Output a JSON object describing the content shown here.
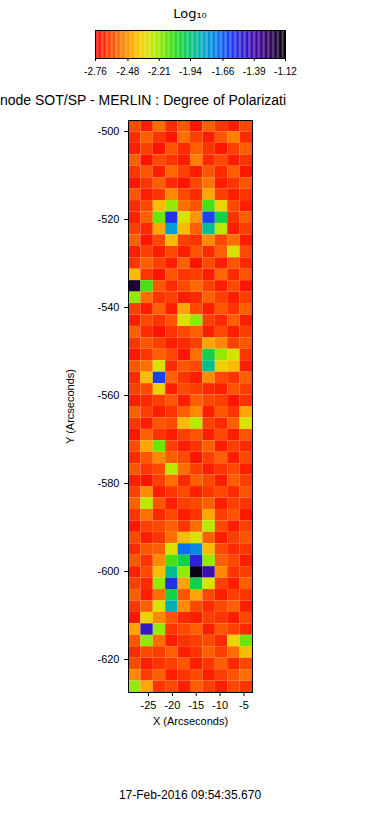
{
  "chart_data": {
    "type": "heatmap",
    "title": "node SOT/SP - MERLIN : Degree of Polarizati",
    "x_label": "X (Arcseconds)",
    "y_label": "Y (Arcseconds)",
    "caption": "17-Feb-2016 09:54:35.670",
    "xlim": [
      -29.2,
      -3.2
    ],
    "ylim": [
      -627.5,
      -497.5
    ],
    "xticks": [
      -25,
      -20,
      -15,
      -10,
      -5
    ],
    "yticks": [
      -620,
      -600,
      -580,
      -560,
      -540,
      -520,
      -500
    ],
    "colorbar": {
      "label": "Log₁₀",
      "range": [
        -2.76,
        -1.12
      ],
      "ticks": [
        -2.76,
        -2.48,
        -2.21,
        -1.94,
        -1.66,
        -1.39,
        -1.12
      ]
    },
    "x": [
      -27.9,
      -25.3,
      -22.7,
      -20.1,
      -17.5,
      -14.9,
      -12.3,
      -9.7,
      -7.1,
      -4.5
    ],
    "y": [
      -498.8,
      -501.4,
      -504.0,
      -506.6,
      -509.2,
      -511.8,
      -514.4,
      -517.0,
      -519.6,
      -522.2,
      -524.8,
      -527.4,
      -530.0,
      -532.6,
      -535.2,
      -537.8,
      -540.4,
      -543.0,
      -545.6,
      -548.2,
      -550.8,
      -553.4,
      -556.0,
      -558.6,
      -561.2,
      -563.8,
      -566.4,
      -569.0,
      -571.6,
      -574.2,
      -576.8,
      -579.4,
      -582.0,
      -584.6,
      -587.2,
      -589.8,
      -592.4,
      -595.0,
      -597.6,
      -600.2,
      -602.8,
      -605.4,
      -608.0,
      -610.6,
      -613.2,
      -615.8,
      -618.4,
      -621.0,
      -623.6,
      -626.2
    ],
    "z": [
      [
        -2.62,
        -2.7,
        -2.55,
        -2.68,
        -2.6,
        -2.72,
        -2.58,
        -2.66,
        -2.7,
        -2.62
      ],
      [
        -2.68,
        -2.58,
        -2.66,
        -2.72,
        -2.55,
        -2.64,
        -2.7,
        -2.6,
        -2.52,
        -2.68
      ],
      [
        -2.7,
        -2.64,
        -2.72,
        -2.6,
        -2.68,
        -2.58,
        -2.66,
        -2.72,
        -2.64,
        -2.58
      ],
      [
        -2.58,
        -2.72,
        -2.62,
        -2.66,
        -2.7,
        -2.52,
        -2.68,
        -2.62,
        -2.7,
        -2.66
      ],
      [
        -2.66,
        -2.6,
        -2.7,
        -2.56,
        -2.64,
        -2.7,
        -2.6,
        -2.68,
        -2.58,
        -2.72
      ],
      [
        -2.72,
        -2.66,
        -2.58,
        -2.68,
        -2.72,
        -2.62,
        -2.54,
        -2.7,
        -2.66,
        -2.6
      ],
      [
        -2.6,
        -2.7,
        -2.66,
        -2.5,
        -2.62,
        -2.68,
        -2.45,
        -2.64,
        -2.7,
        -2.66
      ],
      [
        -2.68,
        -2.62,
        -2.4,
        -2.2,
        -2.55,
        -2.6,
        -2.1,
        -2.35,
        -2.62,
        -2.7
      ],
      [
        -2.7,
        -2.58,
        -2.15,
        -1.55,
        -2.3,
        -2.48,
        -1.6,
        -2.0,
        -2.66,
        -2.58
      ],
      [
        -2.64,
        -2.68,
        -2.45,
        -1.8,
        -2.4,
        -2.58,
        -1.9,
        -2.25,
        -2.7,
        -2.64
      ],
      [
        -2.58,
        -2.72,
        -2.62,
        -2.4,
        -2.64,
        -2.66,
        -2.5,
        -2.62,
        -2.55,
        -2.7
      ],
      [
        -2.7,
        -2.64,
        -2.7,
        -2.62,
        -2.7,
        -2.6,
        -2.68,
        -2.58,
        -2.3,
        -2.62
      ],
      [
        -2.66,
        -2.58,
        -2.64,
        -2.7,
        -2.58,
        -2.72,
        -2.62,
        -2.7,
        -2.6,
        -2.68
      ],
      [
        -2.4,
        -2.66,
        -2.72,
        -2.6,
        -2.66,
        -2.64,
        -2.7,
        -2.56,
        -2.68,
        -2.6
      ],
      [
        -1.2,
        -2.1,
        -2.6,
        -2.68,
        -2.62,
        -2.56,
        -2.64,
        -2.7,
        -2.62,
        -2.72
      ],
      [
        -2.2,
        -2.55,
        -2.66,
        -2.64,
        -2.7,
        -2.68,
        -2.58,
        -2.64,
        -2.7,
        -2.64
      ],
      [
        -2.64,
        -2.7,
        -2.58,
        -2.7,
        -2.45,
        -2.62,
        -2.7,
        -2.6,
        -2.66,
        -2.58
      ],
      [
        -2.7,
        -2.62,
        -2.66,
        -2.6,
        -2.3,
        -2.2,
        -2.64,
        -2.68,
        -2.58,
        -2.7
      ],
      [
        -2.58,
        -2.68,
        -2.72,
        -2.66,
        -2.62,
        -2.58,
        -2.7,
        -2.62,
        -2.7,
        -2.64
      ],
      [
        -2.66,
        -2.6,
        -2.64,
        -2.7,
        -2.68,
        -2.64,
        -2.45,
        -2.5,
        -2.64,
        -2.6
      ],
      [
        -2.72,
        -2.66,
        -2.58,
        -2.62,
        -2.72,
        -2.55,
        -2.0,
        -2.2,
        -2.3,
        -2.66
      ],
      [
        -2.6,
        -2.55,
        -2.3,
        -2.68,
        -2.6,
        -2.62,
        -1.9,
        -2.35,
        -2.4,
        -2.7
      ],
      [
        -2.68,
        -2.4,
        -1.6,
        -2.58,
        -2.66,
        -2.7,
        -2.5,
        -2.62,
        -2.66,
        -2.58
      ],
      [
        -2.64,
        -2.62,
        -2.35,
        -2.7,
        -2.62,
        -2.64,
        -2.68,
        -2.7,
        -2.6,
        -2.64
      ],
      [
        -2.7,
        -2.68,
        -2.64,
        -2.6,
        -2.7,
        -2.58,
        -2.62,
        -2.64,
        -2.72,
        -2.66
      ],
      [
        -2.58,
        -2.64,
        -2.7,
        -2.66,
        -2.58,
        -2.5,
        -2.7,
        -2.6,
        -2.66,
        -2.45
      ],
      [
        -2.66,
        -2.7,
        -2.6,
        -2.62,
        -2.4,
        -2.25,
        -2.64,
        -2.68,
        -2.58,
        -2.3
      ],
      [
        -2.72,
        -2.58,
        -2.66,
        -2.7,
        -2.64,
        -2.6,
        -2.7,
        -2.62,
        -2.7,
        -2.6
      ],
      [
        -2.62,
        -2.45,
        -2.15,
        -2.64,
        -2.7,
        -2.66,
        -2.58,
        -2.7,
        -2.64,
        -2.68
      ],
      [
        -2.68,
        -2.6,
        -2.5,
        -2.58,
        -2.62,
        -2.72,
        -2.64,
        -2.58,
        -2.7,
        -2.62
      ],
      [
        -2.6,
        -2.66,
        -2.62,
        -2.25,
        -2.55,
        -2.64,
        -2.7,
        -2.66,
        -2.62,
        -2.7
      ],
      [
        -2.7,
        -2.72,
        -2.64,
        -2.55,
        -2.68,
        -2.58,
        -2.62,
        -2.7,
        -2.58,
        -2.64
      ],
      [
        -2.64,
        -2.5,
        -2.7,
        -2.66,
        -2.62,
        -2.7,
        -2.66,
        -2.62,
        -2.68,
        -2.6
      ],
      [
        -2.58,
        -2.25,
        -2.6,
        -2.7,
        -2.64,
        -2.62,
        -2.58,
        -2.7,
        -2.64,
        -2.66
      ],
      [
        -2.66,
        -2.55,
        -2.68,
        -2.62,
        -2.7,
        -2.66,
        -2.45,
        -2.64,
        -2.6,
        -2.72
      ],
      [
        -2.72,
        -2.64,
        -2.62,
        -2.58,
        -2.66,
        -2.55,
        -2.25,
        -2.62,
        -2.7,
        -2.64
      ],
      [
        -2.62,
        -2.7,
        -2.66,
        -2.55,
        -2.4,
        -2.3,
        -2.58,
        -2.7,
        -2.64,
        -2.6
      ],
      [
        -2.68,
        -2.6,
        -2.58,
        -2.3,
        -1.7,
        -1.75,
        -2.4,
        -2.62,
        -2.68,
        -2.66
      ],
      [
        -2.6,
        -2.66,
        -2.5,
        -2.1,
        -2.0,
        -1.5,
        -2.2,
        -2.58,
        -2.62,
        -2.7
      ],
      [
        -2.7,
        -2.62,
        -2.4,
        -1.9,
        -2.2,
        -1.15,
        -1.4,
        -2.5,
        -2.66,
        -2.64
      ],
      [
        -2.64,
        -2.68,
        -2.2,
        -1.55,
        -2.45,
        -2.0,
        -2.3,
        -2.64,
        -2.7,
        -2.58
      ],
      [
        -2.58,
        -2.7,
        -2.55,
        -2.0,
        -2.6,
        -2.45,
        -2.62,
        -2.7,
        -2.64,
        -2.66
      ],
      [
        -2.66,
        -2.58,
        -2.3,
        -1.85,
        -2.5,
        -2.62,
        -2.68,
        -2.62,
        -2.58,
        -2.7
      ],
      [
        -2.72,
        -2.35,
        -2.5,
        -2.6,
        -2.68,
        -2.7,
        -2.64,
        -2.66,
        -2.7,
        -2.62
      ],
      [
        -2.45,
        -1.45,
        -2.2,
        -2.66,
        -2.62,
        -2.58,
        -2.7,
        -2.6,
        -2.64,
        -2.68
      ],
      [
        -2.6,
        -2.2,
        -2.55,
        -2.7,
        -2.66,
        -2.64,
        -2.62,
        -2.68,
        -2.35,
        -2.15
      ],
      [
        -2.68,
        -2.62,
        -2.64,
        -2.58,
        -2.7,
        -2.66,
        -2.58,
        -2.64,
        -2.55,
        -2.4
      ],
      [
        -2.62,
        -2.7,
        -2.66,
        -2.64,
        -2.6,
        -2.7,
        -2.66,
        -2.58,
        -2.68,
        -2.62
      ],
      [
        -2.5,
        -2.64,
        -2.58,
        -2.7,
        -2.66,
        -2.62,
        -2.7,
        -2.64,
        -2.6,
        -2.55
      ],
      [
        -2.2,
        -2.45,
        -2.66,
        -2.62,
        -2.7,
        -2.58,
        -2.64,
        -2.7,
        -2.62,
        -2.66
      ]
    ]
  }
}
